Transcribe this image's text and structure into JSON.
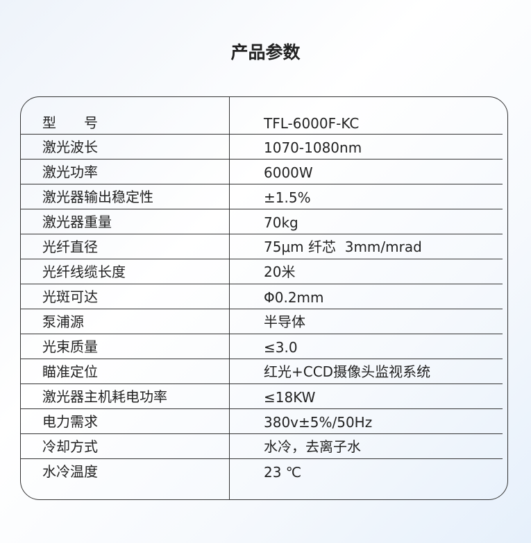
{
  "title": "产品参数",
  "rows": [
    {
      "label": "型　　号",
      "value": "TFL-6000F-KC"
    },
    {
      "label": "激光波长",
      "value": "1070-1080nm"
    },
    {
      "label": "激光功率",
      "value": "6000W"
    },
    {
      "label": "激光器输出稳定性",
      "value": "±1.5%"
    },
    {
      "label": "激光器重量",
      "value": "70kg"
    },
    {
      "label": "光纤直径",
      "value": "75μm 纤芯  3mm/mrad"
    },
    {
      "label": "光纤线缆长度",
      "value": "20米"
    },
    {
      "label": "光斑可达",
      "value": "Φ0.2mm"
    },
    {
      "label": "泵浦源",
      "value": "半导体"
    },
    {
      "label": "光束质量",
      "value": "≤3.0"
    },
    {
      "label": "瞄准定位",
      "value": "红光+CCD摄像头监视系统"
    },
    {
      "label": "激光器主机耗电功率",
      "value": "≤18KW"
    },
    {
      "label": "电力需求",
      "value": "380v±5%/50Hz"
    },
    {
      "label": "冷却方式",
      "value": "水冷，去离子水"
    },
    {
      "label": "水冷温度",
      "value": "23 ℃"
    }
  ]
}
